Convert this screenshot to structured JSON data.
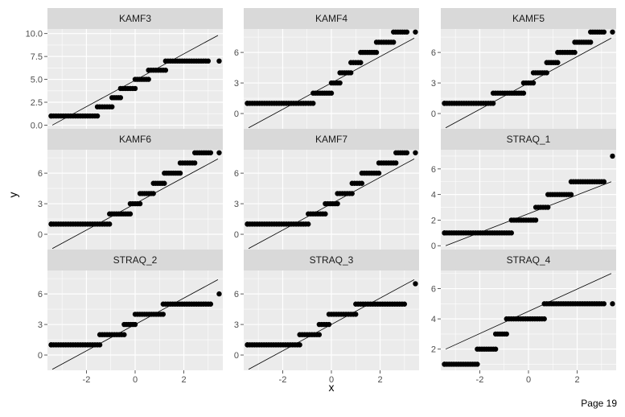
{
  "page": {
    "footer": "Page 19"
  },
  "colors": {
    "panel_background": "#ebebeb",
    "strip_background": "#d9d9d9",
    "gridline": "#ffffff",
    "points": "#000000",
    "reference_line": "#000000"
  },
  "chart_data": {
    "type": "scatter",
    "subtype": "faceted QQ plot with reference lines",
    "xlabel": "x",
    "ylabel": "y",
    "x_ticks": [
      -2,
      0,
      2
    ],
    "xlim": [
      -3.6,
      3.6
    ],
    "grid": true,
    "layout": "3x3 facet grid",
    "facets": [
      {
        "name": "KAMF3",
        "ylim": [
          -0.4,
          10.5
        ],
        "y_ticks": [
          0.0,
          2.5,
          5.0,
          7.5,
          10.0
        ],
        "y_tick_labels": [
          "0.0",
          "2.5",
          "5.0",
          "7.5",
          "10.0"
        ],
        "line": {
          "x": [
            -3.4,
            3.4
          ],
          "y": [
            0.0,
            9.8
          ]
        },
        "steps": [
          {
            "y": 1,
            "x_start": -3.45,
            "x_end": -1.55
          },
          {
            "y": 2,
            "x_start": -1.55,
            "x_end": -0.95
          },
          {
            "y": 3,
            "x_start": -0.95,
            "x_end": -0.6
          },
          {
            "y": 4,
            "x_start": -0.6,
            "x_end": 0.0
          },
          {
            "y": 5,
            "x_start": 0.0,
            "x_end": 0.55
          },
          {
            "y": 6,
            "x_start": 0.55,
            "x_end": 1.25
          },
          {
            "y": 7,
            "x_start": 1.25,
            "x_end": 3.0
          }
        ],
        "isolated_points": [
          {
            "x": -3.45,
            "y": 1
          },
          {
            "x": 3.45,
            "y": 7
          }
        ]
      },
      {
        "name": "KAMF4",
        "ylim": [
          -1.5,
          8.3
        ],
        "y_ticks": [
          0,
          3,
          6
        ],
        "y_tick_labels": [
          "0",
          "3",
          "6"
        ],
        "line": {
          "x": [
            -3.4,
            3.4
          ],
          "y": [
            -1.4,
            7.4
          ]
        },
        "steps": [
          {
            "y": 1,
            "x_start": -3.45,
            "x_end": -0.75
          },
          {
            "y": 2,
            "x_start": -0.75,
            "x_end": 0.0
          },
          {
            "y": 3,
            "x_start": 0.0,
            "x_end": 0.35
          },
          {
            "y": 4,
            "x_start": 0.35,
            "x_end": 0.8
          },
          {
            "y": 5,
            "x_start": 0.8,
            "x_end": 1.2
          },
          {
            "y": 6,
            "x_start": 1.2,
            "x_end": 1.85
          },
          {
            "y": 7,
            "x_start": 1.85,
            "x_end": 2.55
          },
          {
            "y": 8,
            "x_start": 2.55,
            "x_end": 3.1
          }
        ],
        "isolated_points": [
          {
            "x": -3.45,
            "y": 1
          },
          {
            "x": 3.45,
            "y": 8
          }
        ]
      },
      {
        "name": "KAMF5",
        "ylim": [
          -1.5,
          8.3
        ],
        "y_ticks": [
          0,
          3,
          6
        ],
        "y_tick_labels": [
          "0",
          "3",
          "6"
        ],
        "line": {
          "x": [
            -3.4,
            3.4
          ],
          "y": [
            -1.4,
            7.4
          ]
        },
        "steps": [
          {
            "y": 1,
            "x_start": -3.45,
            "x_end": -1.45
          },
          {
            "y": 2,
            "x_start": -1.45,
            "x_end": -0.2
          },
          {
            "y": 3,
            "x_start": -0.2,
            "x_end": 0.2
          },
          {
            "y": 4,
            "x_start": 0.2,
            "x_end": 0.75
          },
          {
            "y": 5,
            "x_start": 0.75,
            "x_end": 1.2
          },
          {
            "y": 6,
            "x_start": 1.2,
            "x_end": 1.9
          },
          {
            "y": 7,
            "x_start": 1.9,
            "x_end": 2.55
          },
          {
            "y": 8,
            "x_start": 2.55,
            "x_end": 3.1
          }
        ],
        "isolated_points": [
          {
            "x": -3.45,
            "y": 1
          },
          {
            "x": 3.45,
            "y": 8
          }
        ]
      },
      {
        "name": "KAMF6",
        "ylim": [
          -1.5,
          8.3
        ],
        "y_ticks": [
          0,
          3,
          6
        ],
        "y_tick_labels": [
          "0",
          "3",
          "6"
        ],
        "line": {
          "x": [
            -3.4,
            3.4
          ],
          "y": [
            -1.4,
            7.4
          ]
        },
        "steps": [
          {
            "y": 1,
            "x_start": -3.45,
            "x_end": -1.05
          },
          {
            "y": 2,
            "x_start": -1.05,
            "x_end": -0.2
          },
          {
            "y": 3,
            "x_start": -0.2,
            "x_end": 0.2
          },
          {
            "y": 4,
            "x_start": 0.2,
            "x_end": 0.75
          },
          {
            "y": 5,
            "x_start": 0.75,
            "x_end": 1.2
          },
          {
            "y": 6,
            "x_start": 1.2,
            "x_end": 1.85
          },
          {
            "y": 7,
            "x_start": 1.85,
            "x_end": 2.45
          },
          {
            "y": 8,
            "x_start": 2.45,
            "x_end": 3.1
          }
        ],
        "isolated_points": [
          {
            "x": -3.45,
            "y": 1
          },
          {
            "x": 3.45,
            "y": 8
          }
        ]
      },
      {
        "name": "KAMF7",
        "ylim": [
          -1.5,
          8.3
        ],
        "y_ticks": [
          0,
          3,
          6
        ],
        "y_tick_labels": [
          "0",
          "3",
          "6"
        ],
        "line": {
          "x": [
            -3.4,
            3.4
          ],
          "y": [
            -1.4,
            7.4
          ]
        },
        "steps": [
          {
            "y": 1,
            "x_start": -3.45,
            "x_end": -0.95
          },
          {
            "y": 2,
            "x_start": -0.95,
            "x_end": -0.25
          },
          {
            "y": 3,
            "x_start": -0.25,
            "x_end": 0.25
          },
          {
            "y": 4,
            "x_start": 0.25,
            "x_end": 0.85
          },
          {
            "y": 5,
            "x_start": 0.85,
            "x_end": 1.25
          },
          {
            "y": 6,
            "x_start": 1.25,
            "x_end": 1.95
          },
          {
            "y": 7,
            "x_start": 1.95,
            "x_end": 2.65
          },
          {
            "y": 8,
            "x_start": 2.65,
            "x_end": 3.1
          }
        ],
        "isolated_points": [
          {
            "x": -3.45,
            "y": 1
          },
          {
            "x": 3.45,
            "y": 8
          }
        ]
      },
      {
        "name": "STRAQ_1",
        "ylim": [
          -0.3,
          7.5
        ],
        "y_ticks": [
          0,
          2,
          4,
          6
        ],
        "y_tick_labels": [
          "0",
          "2",
          "4",
          "6"
        ],
        "line": {
          "x": [
            -3.4,
            3.4
          ],
          "y": [
            0.0,
            5.0
          ]
        },
        "steps": [
          {
            "y": 1,
            "x_start": -3.45,
            "x_end": -0.7
          },
          {
            "y": 2,
            "x_start": -0.7,
            "x_end": 0.3
          },
          {
            "y": 3,
            "x_start": 0.3,
            "x_end": 0.8
          },
          {
            "y": 4,
            "x_start": 0.8,
            "x_end": 1.75
          },
          {
            "y": 5,
            "x_start": 1.75,
            "x_end": 3.1
          }
        ],
        "isolated_points": [
          {
            "x": -3.45,
            "y": 1
          },
          {
            "x": 3.45,
            "y": 7
          }
        ]
      },
      {
        "name": "STRAQ_2",
        "ylim": [
          -1.5,
          8.3
        ],
        "y_ticks": [
          0,
          3,
          6
        ],
        "y_tick_labels": [
          "0",
          "3",
          "6"
        ],
        "line": {
          "x": [
            -3.4,
            3.4
          ],
          "y": [
            -1.4,
            7.4
          ]
        },
        "steps": [
          {
            "y": 1,
            "x_start": -3.45,
            "x_end": -1.45
          },
          {
            "y": 2,
            "x_start": -1.45,
            "x_end": -0.45
          },
          {
            "y": 3,
            "x_start": -0.45,
            "x_end": 0.0
          },
          {
            "y": 4,
            "x_start": 0.0,
            "x_end": 1.15
          },
          {
            "y": 5,
            "x_start": 1.15,
            "x_end": 3.1
          }
        ],
        "isolated_points": [
          {
            "x": -3.45,
            "y": 1
          },
          {
            "x": 3.45,
            "y": 6
          }
        ]
      },
      {
        "name": "STRAQ_3",
        "ylim": [
          -1.5,
          8.3
        ],
        "y_ticks": [
          0,
          3,
          6
        ],
        "y_tick_labels": [
          "0",
          "3",
          "6"
        ],
        "line": {
          "x": [
            -3.4,
            3.4
          ],
          "y": [
            -1.4,
            7.4
          ]
        },
        "steps": [
          {
            "y": 1,
            "x_start": -3.45,
            "x_end": -1.3
          },
          {
            "y": 2,
            "x_start": -1.3,
            "x_end": -0.5
          },
          {
            "y": 3,
            "x_start": -0.5,
            "x_end": -0.1
          },
          {
            "y": 4,
            "x_start": -0.1,
            "x_end": 1.0
          },
          {
            "y": 5,
            "x_start": 1.0,
            "x_end": 3.0
          }
        ],
        "isolated_points": [
          {
            "x": -3.45,
            "y": 1
          },
          {
            "x": 3.45,
            "y": 7
          }
        ]
      },
      {
        "name": "STRAQ_4",
        "ylim": [
          0.6,
          7.2
        ],
        "y_ticks": [
          2,
          4,
          6
        ],
        "y_tick_labels": [
          "2",
          "4",
          "6"
        ],
        "line": {
          "x": [
            -3.4,
            3.4
          ],
          "y": [
            2.0,
            7.0
          ]
        },
        "steps": [
          {
            "y": 1,
            "x_start": -3.45,
            "x_end": -2.1
          },
          {
            "y": 2,
            "x_start": -2.1,
            "x_end": -1.35
          },
          {
            "y": 3,
            "x_start": -1.35,
            "x_end": -0.9
          },
          {
            "y": 4,
            "x_start": -0.9,
            "x_end": 0.65
          },
          {
            "y": 5,
            "x_start": 0.65,
            "x_end": 3.1
          }
        ],
        "isolated_points": [
          {
            "x": -3.45,
            "y": 1
          },
          {
            "x": 3.45,
            "y": 5
          }
        ]
      }
    ]
  }
}
